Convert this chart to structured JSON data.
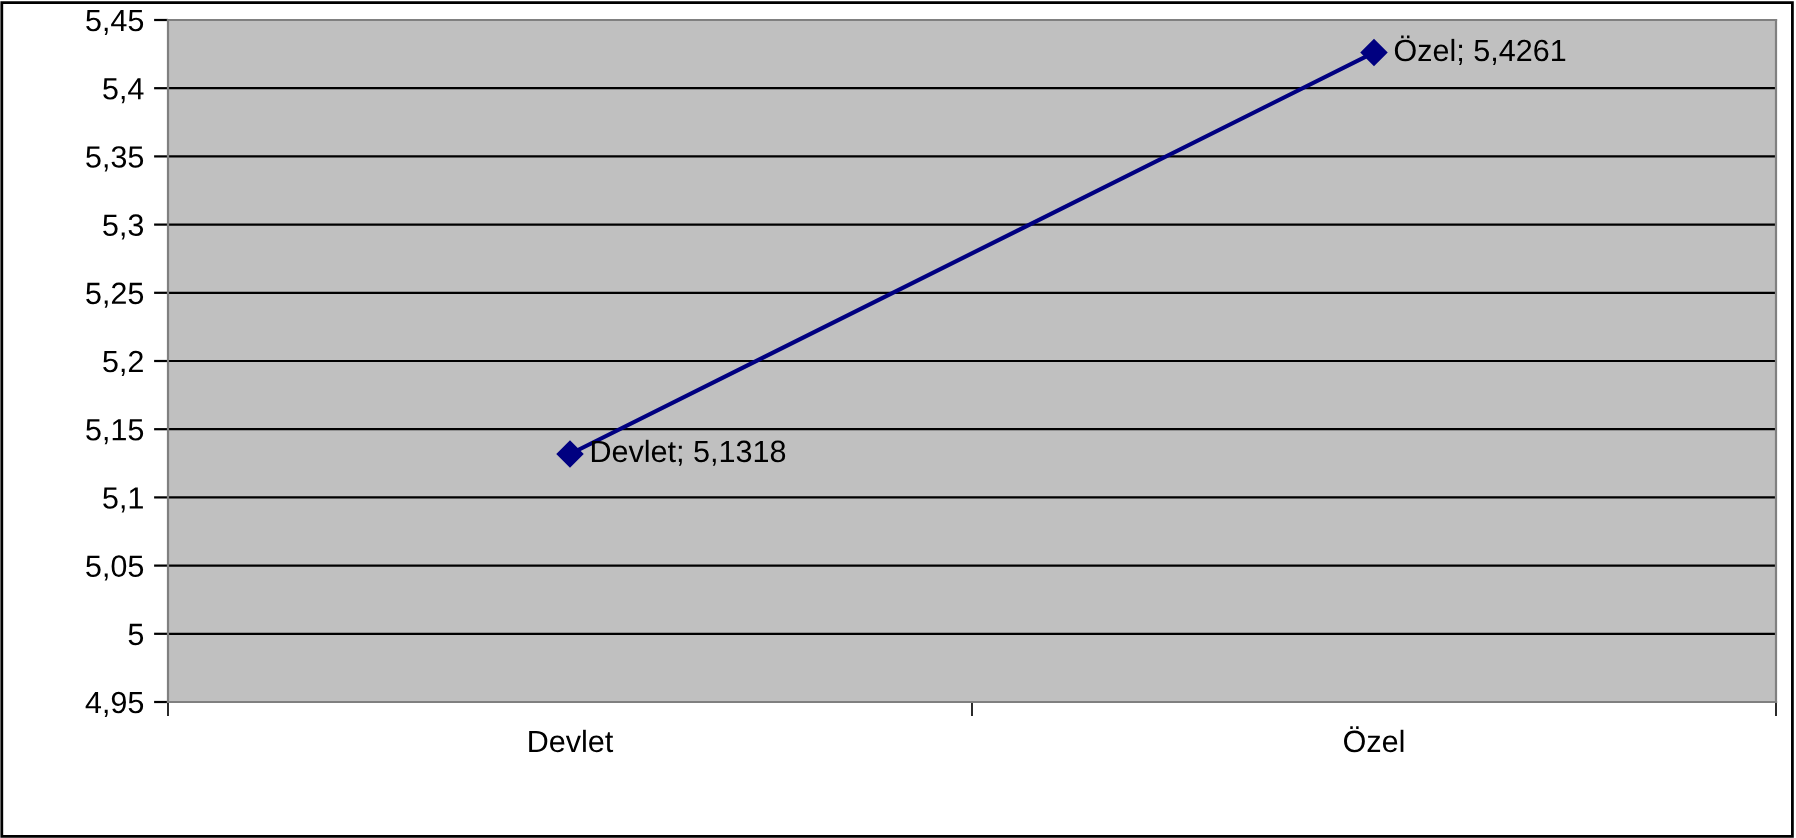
{
  "chart_data": {
    "type": "line",
    "categories": [
      "Devlet",
      "Özel"
    ],
    "series": [
      {
        "color": "#000080",
        "values": [
          5.1318,
          5.4261
        ],
        "value_labels": [
          "Devlet; 5,1318",
          "Özel; 5,4261"
        ]
      }
    ],
    "ylim": [
      4.95,
      5.45
    ],
    "yticks": [
      {
        "value": 4.95,
        "label": "4,95"
      },
      5,
      {
        "value": 5.05,
        "label": "5,05"
      },
      {
        "value": 5.1,
        "label": "5,1"
      },
      {
        "value": 5.15,
        "label": "5,15"
      },
      {
        "value": 5.2,
        "label": "5,2"
      },
      {
        "value": 5.25,
        "label": "5,25"
      },
      {
        "value": 5.3,
        "label": "5,3"
      },
      {
        "value": 5.35,
        "label": "5,35"
      },
      {
        "value": 5.4,
        "label": "5,4"
      },
      {
        "value": 5.45,
        "label": "5,45"
      }
    ],
    "grid": "y",
    "marker": "diamond",
    "line_style": "solid",
    "legend": false
  }
}
